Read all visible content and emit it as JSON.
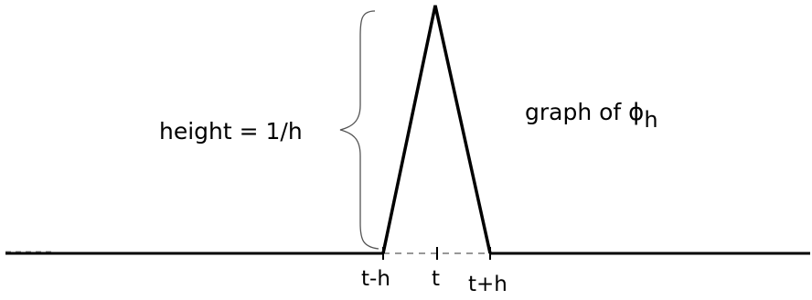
{
  "labels": {
    "height": "height = 1/h",
    "graph_prefix": "graph of ",
    "phi_symbol": "ϕ",
    "phi_subscript": "h",
    "t_minus_h": "t-h",
    "t": "t",
    "t_plus_h": "t+h"
  },
  "colors": {
    "ink": "#000000",
    "dashed": "#777777",
    "brace": "#555555",
    "background": "#ffffff"
  }
}
